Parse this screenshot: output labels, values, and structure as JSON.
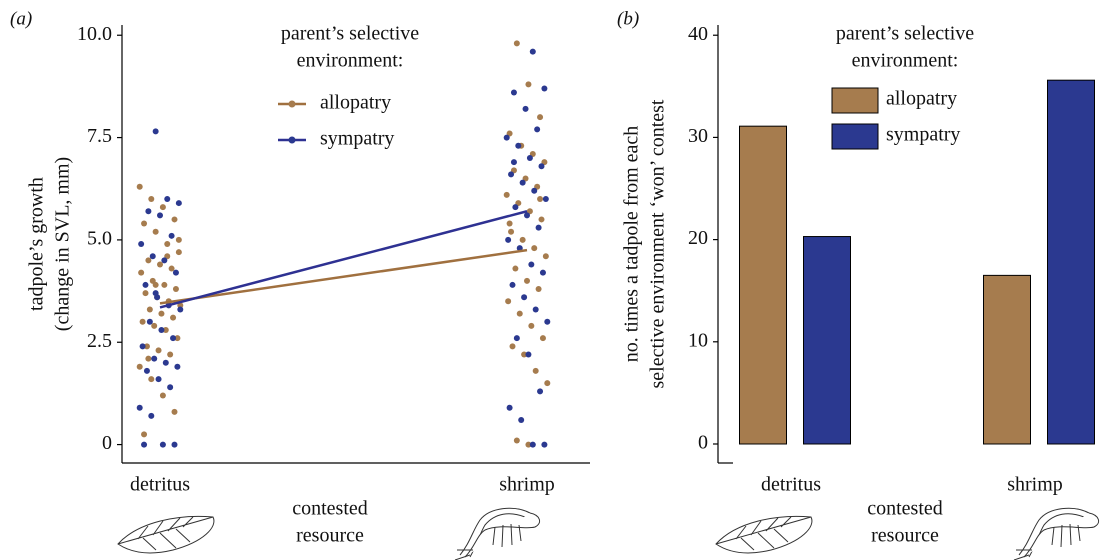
{
  "chart_data": [
    {
      "type": "strip",
      "panel_label": "(a)",
      "y_label": [
        "tadpole’s growth",
        "(change in SVL, mm)"
      ],
      "x_label": [
        "contested",
        "resource"
      ],
      "legend_title": [
        "parent’s selective",
        "environment:"
      ],
      "categories": [
        "detritus",
        "shrimp"
      ],
      "ylim": [
        -0.45,
        10.25
      ],
      "yticks": [
        0,
        2.5,
        {
          "value": 5,
          "label": "5.0"
        },
        7.5,
        {
          "value": 10,
          "label": "10.0"
        }
      ],
      "series": [
        {
          "name": "allopatry",
          "color": "#a67c4e",
          "line_color": "#a0703f",
          "values": [
            3.45,
            4.75
          ],
          "points": [
            [
              6.3,
              6.0,
              5.8,
              5.5,
              5.4,
              5.2,
              4.9,
              4.7,
              4.5,
              4.4,
              4.3,
              4.2,
              4.0,
              3.9,
              3.8,
              3.7,
              3.6,
              3.5,
              3.4,
              3.3,
              3.2,
              3.1,
              3.0,
              2.9,
              2.8,
              2.6,
              2.4,
              2.3,
              2.2,
              1.9,
              1.6,
              1.2,
              0.8,
              0.25,
              3.9,
              4.6,
              5.0,
              2.1
            ],
            [
              9.8,
              8.8,
              8.0,
              7.6,
              7.3,
              7.1,
              6.9,
              6.7,
              6.5,
              6.3,
              6.1,
              5.9,
              5.7,
              5.5,
              5.2,
              5.0,
              4.8,
              4.6,
              4.3,
              4.0,
              3.8,
              3.5,
              3.2,
              2.9,
              2.6,
              2.4,
              2.2,
              1.8,
              1.5,
              0.1,
              0,
              6.0,
              5.4
            ]
          ]
        },
        {
          "name": "sympatry",
          "color": "#2b3990",
          "line_color": "#2e3192",
          "values": [
            3.35,
            5.7
          ],
          "points": [
            [
              7.65,
              6.0,
              5.9,
              5.7,
              5.6,
              5.1,
              4.9,
              4.6,
              4.5,
              4.2,
              3.9,
              3.6,
              3.4,
              3.3,
              3.0,
              2.8,
              2.6,
              2.4,
              2.1,
              2.0,
              1.9,
              1.8,
              1.6,
              1.4,
              0.9,
              0.7,
              0,
              0,
              0,
              3.7
            ],
            [
              9.6,
              8.7,
              8.6,
              8.2,
              7.7,
              7.5,
              7.3,
              7.0,
              6.8,
              6.6,
              6.4,
              6.2,
              6.0,
              5.8,
              5.6,
              5.3,
              5.0,
              4.8,
              4.4,
              4.2,
              3.9,
              3.6,
              3.3,
              3.0,
              2.6,
              2.2,
              1.3,
              0.9,
              0.6,
              0,
              0,
              6.9
            ]
          ]
        }
      ]
    },
    {
      "type": "bar",
      "panel_label": "(b)",
      "y_label": [
        "no. times a tadpole from each",
        "selective environment ‘won’ contest"
      ],
      "x_label": [
        "contested",
        "resource"
      ],
      "legend_title": [
        "parent’s selective",
        "environment:"
      ],
      "categories": [
        "detritus",
        "shrimp"
      ],
      "ylim": [
        -1.86,
        41
      ],
      "yticks": [
        0,
        10,
        20,
        30,
        40
      ],
      "series": [
        {
          "name": "allopatry",
          "color": "#a67c4e",
          "values": [
            31.1,
            16.5
          ]
        },
        {
          "name": "sympatry",
          "color": "#2b3990",
          "values": [
            20.3,
            35.6
          ]
        }
      ]
    }
  ]
}
